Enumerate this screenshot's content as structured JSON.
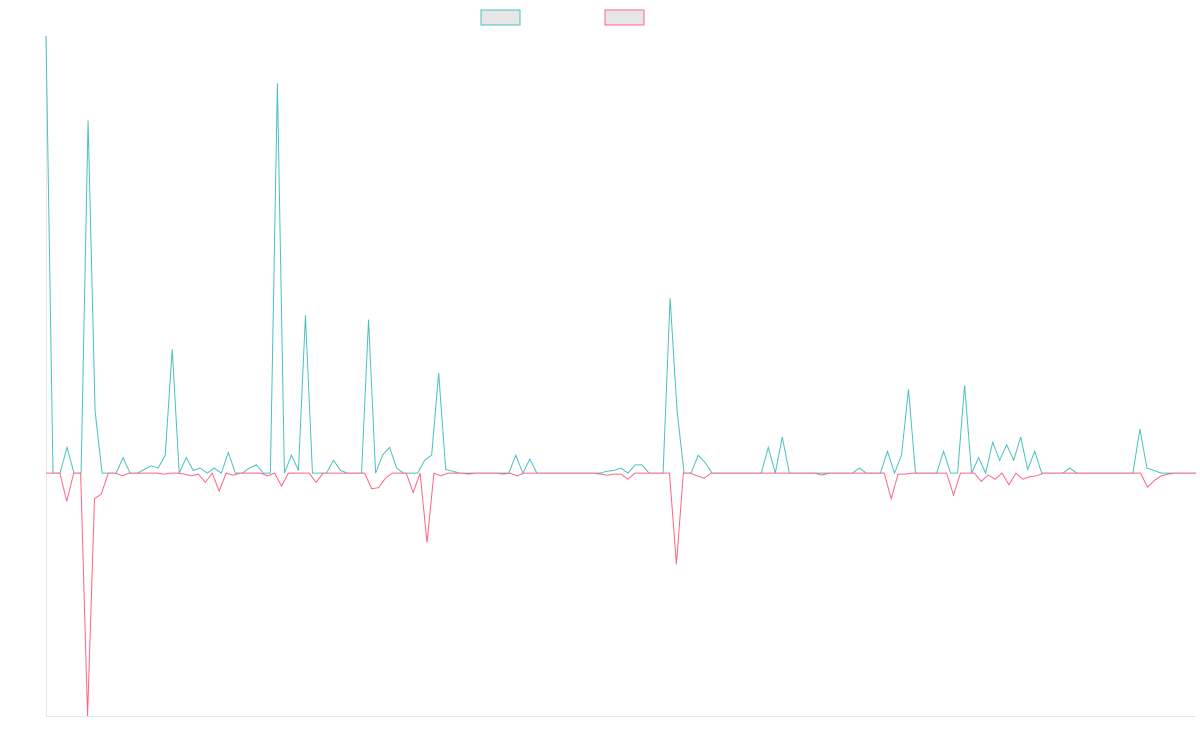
{
  "chart_data": {
    "type": "line",
    "title": "",
    "xlabel": "",
    "ylabel": "",
    "ylim": [
      -100,
      180
    ],
    "grid": false,
    "legend": "top-center",
    "colors": {
      "series_a": "#4bc0c0",
      "series_b": "#ff6384",
      "legend_fill": "#e6e6e6",
      "axis": "#e6e6e6"
    },
    "series": [
      {
        "name": "",
        "color": "#4bc0c0",
        "values": [
          180,
          0,
          0,
          10.6,
          0,
          0,
          145.2,
          25.5,
          0,
          0,
          0,
          6.4,
          0,
          0,
          1.5,
          3,
          2.1,
          7.4,
          51,
          0,
          6.4,
          1.1,
          2.1,
          0,
          2.1,
          0,
          8.5,
          0,
          0,
          2.1,
          3.4,
          0,
          0,
          160.5,
          0,
          7.4,
          1.1,
          65,
          0,
          0,
          0,
          5.3,
          1.1,
          0,
          0,
          0,
          63.2,
          0,
          7.4,
          10.6,
          2.1,
          0,
          0,
          0,
          5.3,
          7.4,
          41.2,
          1.5,
          0.8,
          0,
          0,
          0,
          0,
          0,
          0,
          0,
          0,
          7.4,
          0,
          5.8,
          0,
          0,
          0,
          0,
          0,
          0,
          0,
          0,
          0,
          0,
          0.8,
          1.1,
          2.1,
          0,
          3.4,
          3.4,
          0,
          0,
          0,
          72.1,
          25.5,
          0,
          0,
          7.4,
          4.3,
          0,
          0,
          0,
          0,
          0,
          0,
          0,
          0,
          10.6,
          0,
          14.9,
          0,
          0,
          0,
          0,
          0,
          0,
          0,
          0,
          0,
          0,
          2.1,
          0,
          0,
          0,
          9,
          0,
          7.4,
          34.5,
          0,
          0,
          0,
          0,
          9,
          0,
          0,
          36.1,
          0,
          6.4,
          0,
          12.7,
          5.3,
          11.7,
          5.3,
          14.9,
          1.5,
          9,
          0,
          0,
          0,
          0,
          2.1,
          0,
          0,
          0,
          0,
          0,
          0,
          0,
          0,
          0,
          18.1,
          2.1,
          1.1,
          0,
          0,
          0,
          0,
          0,
          0
        ]
      },
      {
        "name": "",
        "color": "#ff6384",
        "values": [
          0,
          0,
          0,
          -11.6,
          0,
          0,
          -100,
          -10.6,
          -8.5,
          0,
          0,
          -1.1,
          0,
          0,
          0,
          0,
          0,
          -0.4,
          0,
          0,
          -0.4,
          -1.1,
          -0.4,
          -3.8,
          0,
          -7.4,
          0,
          -0.8,
          0,
          0,
          0,
          0,
          -1.1,
          0,
          -5.3,
          0,
          0,
          0,
          0,
          -3.8,
          0,
          0,
          0,
          0,
          0,
          0,
          0,
          -6.4,
          -6,
          -2.1,
          0,
          0,
          0,
          -8,
          0,
          -28.6,
          0,
          -1.1,
          0,
          0,
          0,
          -0.4,
          0,
          0,
          0,
          0,
          -0.4,
          0,
          -1.1,
          0,
          0,
          0,
          0,
          0,
          0,
          0,
          0,
          0,
          0,
          0,
          -0.4,
          -0.8,
          -0.4,
          -0.4,
          -2.5,
          0,
          0,
          0,
          0,
          0,
          0,
          -37.5,
          0,
          0,
          -1.1,
          -2.1,
          0,
          0,
          0,
          0,
          0,
          0,
          0,
          0,
          0,
          0,
          0,
          0,
          0,
          0,
          0,
          0,
          -0.8,
          0,
          0,
          0,
          0,
          0,
          0,
          0,
          0,
          0,
          -10.6,
          -0.4,
          -0.4,
          0,
          0,
          0,
          0,
          0,
          0,
          -9,
          0,
          0,
          0,
          -3.4,
          -0.8,
          -2.5,
          0,
          -4.8,
          0,
          -2.5,
          -1.5,
          -1.1,
          0,
          0,
          0,
          0,
          0,
          0,
          0,
          0,
          0,
          0,
          0,
          0,
          0,
          0,
          0,
          -5.8,
          -3,
          -1.1,
          -0.4,
          0,
          0,
          0,
          0
        ]
      }
    ]
  }
}
